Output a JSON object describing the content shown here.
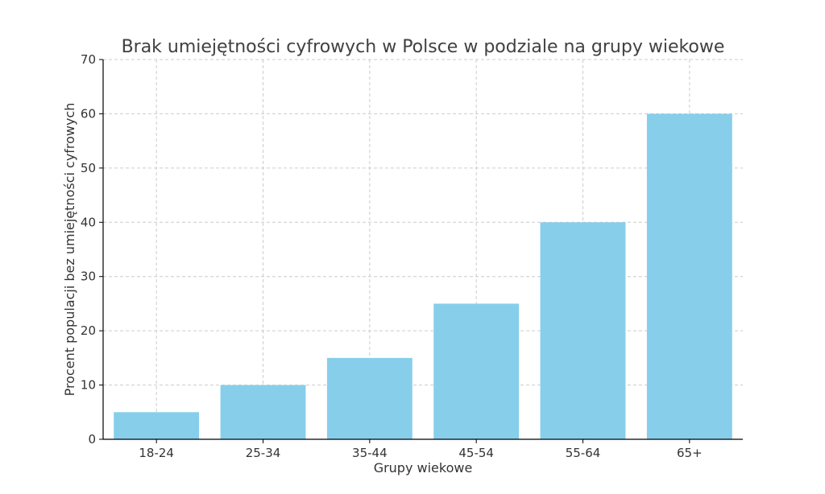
{
  "chart_data": {
    "type": "bar",
    "title": "Brak umiejętności cyfrowych w Polsce w podziale na grupy wiekowe",
    "xlabel": "Grupy wiekowe",
    "ylabel": "Procent populacji bez umiejętności cyfrowych",
    "categories": [
      "18-24",
      "25-34",
      "35-44",
      "45-54",
      "55-64",
      "65+"
    ],
    "values": [
      5,
      10,
      15,
      25,
      40,
      60
    ],
    "ylim": [
      0,
      70
    ],
    "yticks": [
      0,
      10,
      20,
      30,
      40,
      50,
      60,
      70
    ],
    "grid": true,
    "bar_color": "#87ceeb"
  }
}
